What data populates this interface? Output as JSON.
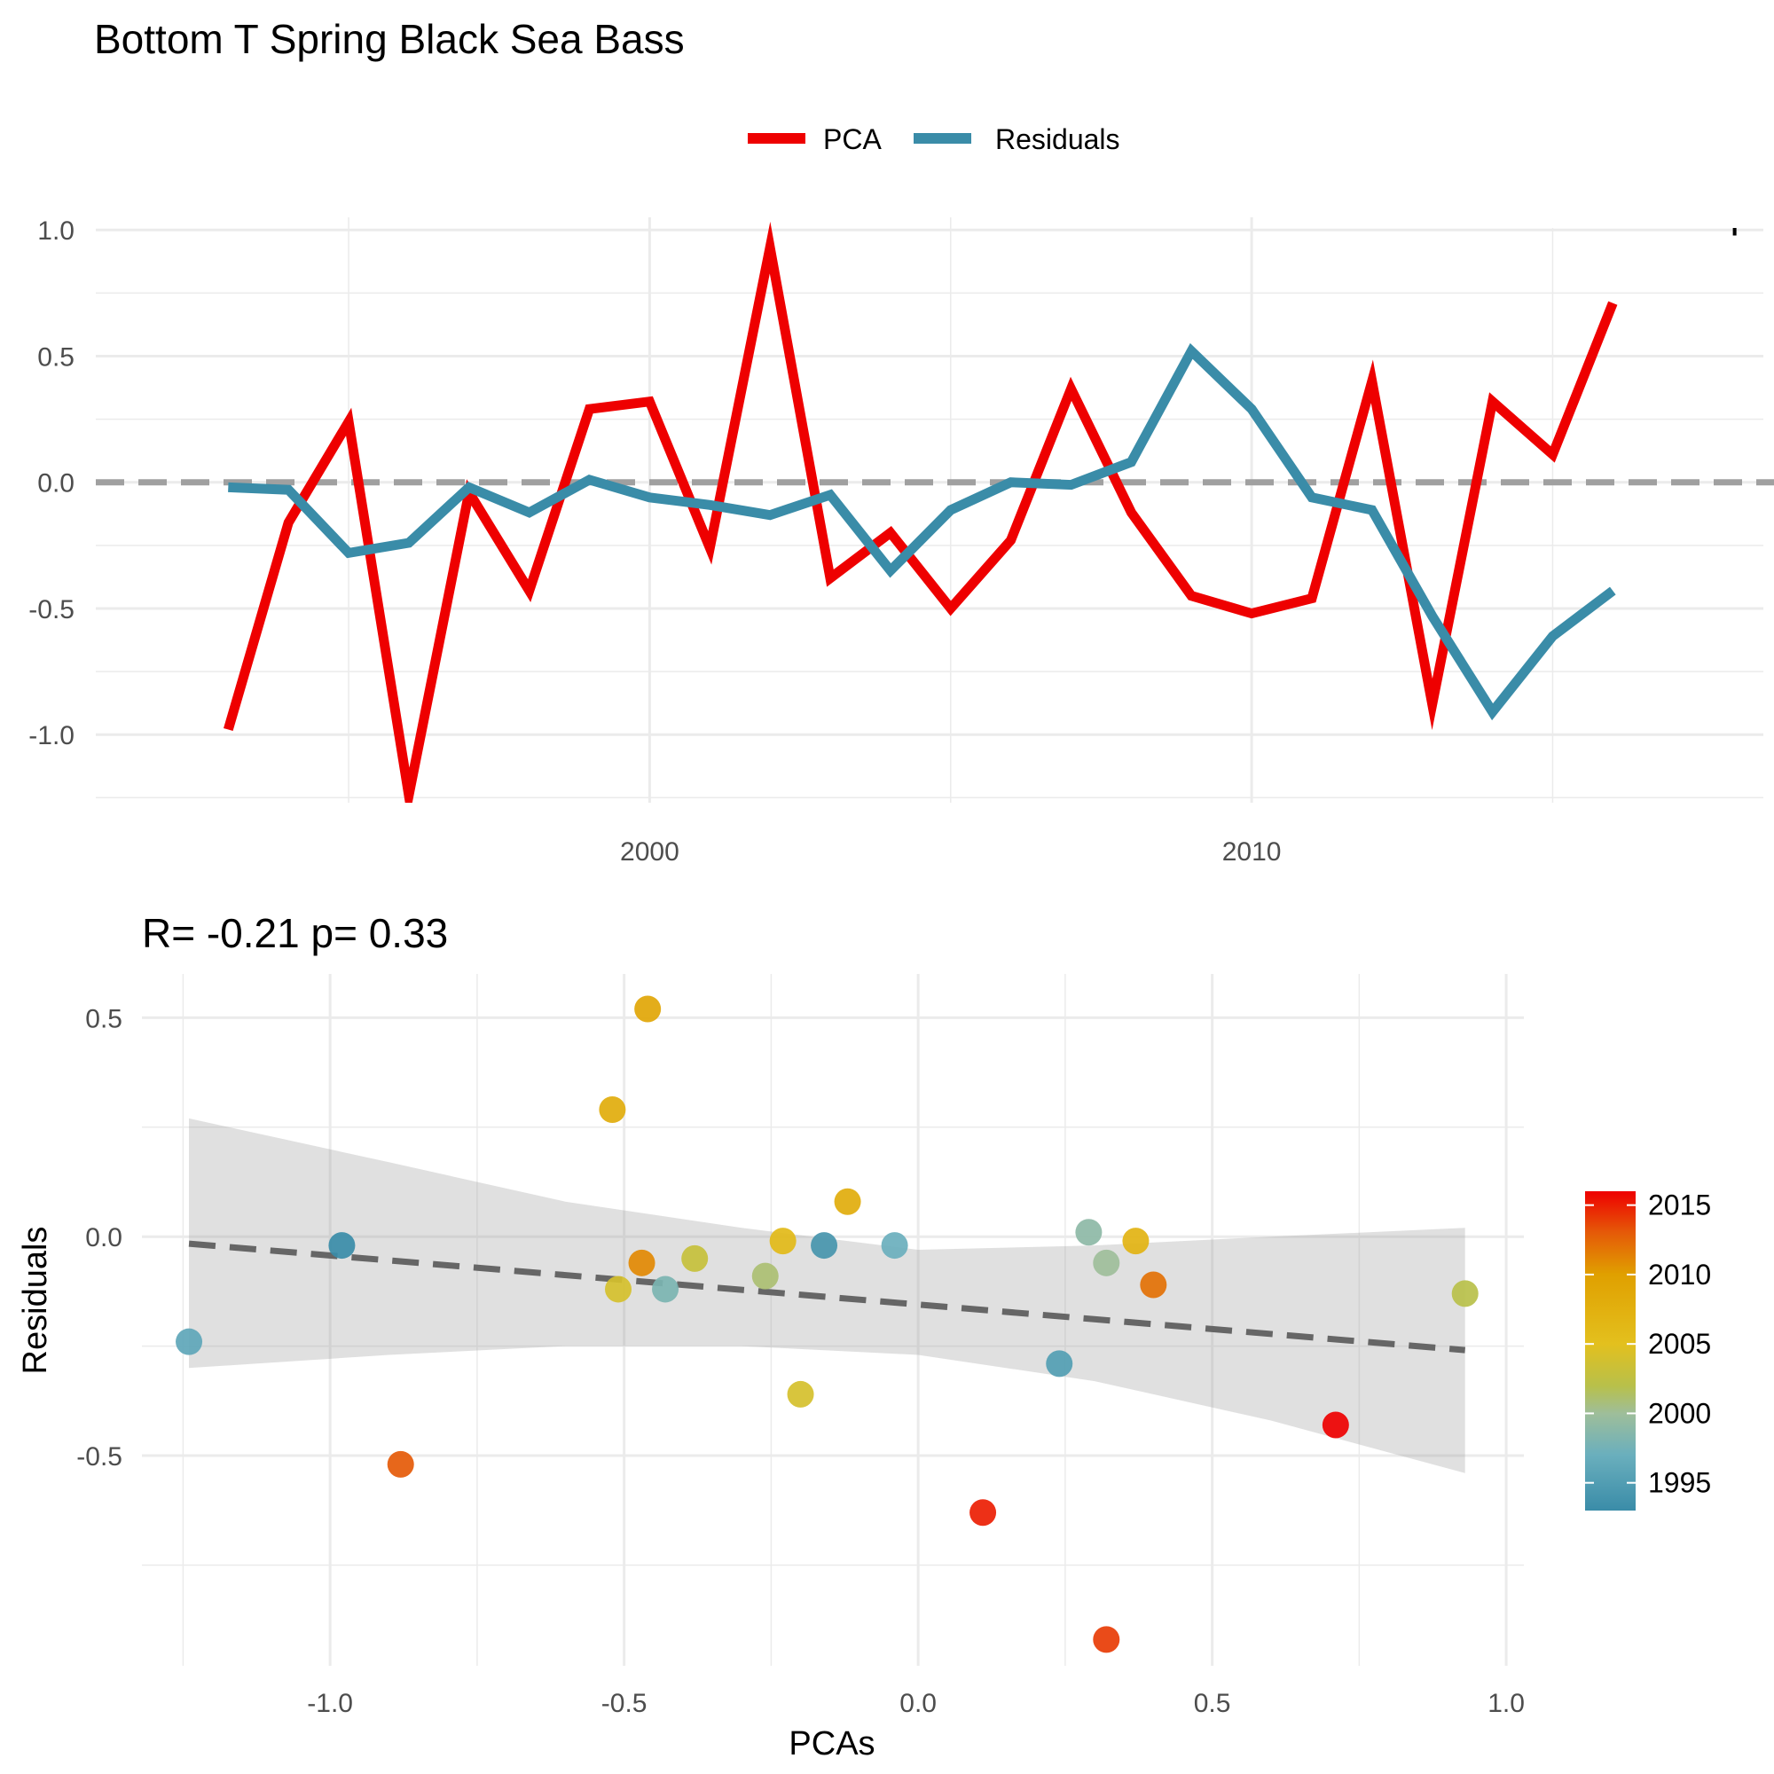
{
  "title": "Bottom T Spring Black Sea Bass",
  "chart_data": [
    {
      "type": "line",
      "legend": {
        "position": "top",
        "entries": [
          "PCA",
          "Residuals"
        ]
      },
      "series_colors": {
        "PCA": "#ee0000",
        "Residuals": "#3a8ca8"
      },
      "x": [
        1993,
        1994,
        1995,
        1996,
        1997,
        1998,
        1999,
        2000,
        2001,
        2002,
        2003,
        2004,
        2005,
        2006,
        2007,
        2008,
        2009,
        2010,
        2011,
        2012,
        2013,
        2014,
        2015,
        2016
      ],
      "series": [
        {
          "name": "PCA",
          "values": [
            -0.98,
            -0.16,
            0.24,
            -1.24,
            -0.04,
            -0.43,
            0.29,
            0.32,
            -0.26,
            0.93,
            -0.38,
            -0.2,
            -0.5,
            -0.23,
            0.37,
            -0.12,
            -0.45,
            -0.52,
            -0.46,
            0.4,
            -0.88,
            0.32,
            0.11,
            0.71
          ]
        },
        {
          "name": "Residuals",
          "values": [
            -0.02,
            -0.03,
            -0.28,
            -0.24,
            -0.02,
            -0.12,
            0.01,
            -0.06,
            -0.09,
            -0.13,
            -0.05,
            -0.35,
            -0.11,
            0.0,
            -0.01,
            0.08,
            0.52,
            0.29,
            -0.06,
            -0.11,
            -0.53,
            -0.91,
            -0.61,
            -0.43
          ]
        }
      ],
      "reference_line_y": 0,
      "xlim": [
        1990.8,
        2018.5
      ],
      "ylim": [
        -1.27,
        1.05
      ],
      "x_ticks": [
        2000,
        2010
      ],
      "x_tick_labels": [
        "2000",
        "2010"
      ],
      "y_ticks": [
        1.0,
        0.5,
        0.0,
        -0.5,
        -1.0
      ],
      "y_tick_labels": [
        "1.0",
        "0.5",
        "0.0",
        "-0.5",
        "-1.0"
      ],
      "annotation_partial": "R= -0.21  p= 0.33",
      "grid": true
    },
    {
      "type": "scatter",
      "subtitle": "R= -0.21  p= 0.33",
      "xlabel": "PCAs",
      "ylabel": "Residuals",
      "xlim": [
        -1.32,
        1.03
      ],
      "ylim": [
        -0.98,
        0.6
      ],
      "x_ticks": [
        -1.0,
        -0.5,
        0.0,
        0.5,
        1.0
      ],
      "x_tick_labels": [
        "-1.0",
        "-0.5",
        "0.0",
        "0.5",
        "1.0"
      ],
      "y_ticks": [
        0.5,
        0.0,
        -0.5
      ],
      "y_tick_labels": [
        "0.5",
        "0.0",
        "-0.5"
      ],
      "points": [
        {
          "x": -1.24,
          "y": -0.24,
          "year": 1996
        },
        {
          "x": -0.98,
          "y": -0.02,
          "year": 1993
        },
        {
          "x": -0.88,
          "y": -0.52,
          "year": 2013
        },
        {
          "x": -0.52,
          "y": 0.29,
          "year": 2008
        },
        {
          "x": -0.46,
          "y": 0.52,
          "year": 2009
        },
        {
          "x": -0.47,
          "y": -0.06,
          "year": 2011
        },
        {
          "x": -0.51,
          "y": -0.12,
          "year": 2004
        },
        {
          "x": -0.43,
          "y": -0.12,
          "year": 1998
        },
        {
          "x": -0.38,
          "y": -0.05,
          "year": 2003
        },
        {
          "x": -0.26,
          "y": -0.09,
          "year": 2001
        },
        {
          "x": -0.23,
          "y": -0.01,
          "year": 2006
        },
        {
          "x": -0.2,
          "y": -0.36,
          "year": 2004
        },
        {
          "x": -0.16,
          "y": -0.02,
          "year": 1994
        },
        {
          "x": -0.12,
          "y": 0.08,
          "year": 2008
        },
        {
          "x": -0.04,
          "y": -0.02,
          "year": 1997
        },
        {
          "x": 0.11,
          "y": -0.63,
          "year": 2015
        },
        {
          "x": 0.24,
          "y": -0.29,
          "year": 1995
        },
        {
          "x": 0.29,
          "y": 0.01,
          "year": 1999
        },
        {
          "x": 0.32,
          "y": -0.06,
          "year": 2000
        },
        {
          "x": 0.32,
          "y": -0.92,
          "year": 2014
        },
        {
          "x": 0.37,
          "y": -0.01,
          "year": 2007
        },
        {
          "x": 0.4,
          "y": -0.11,
          "year": 2012
        },
        {
          "x": 0.71,
          "y": -0.43,
          "year": 2016
        },
        {
          "x": 0.93,
          "y": -0.13,
          "year": 2002
        }
      ],
      "trend": {
        "x0": -1.24,
        "x1": 0.93,
        "slope": -0.112,
        "intercept": -0.155,
        "style": "dashed",
        "color": "#666666"
      },
      "confidence_band": {
        "x": [
          -1.24,
          -0.9,
          -0.6,
          -0.3,
          0.0,
          0.3,
          0.6,
          0.93
        ],
        "upper": [
          0.27,
          0.17,
          0.08,
          0.02,
          -0.03,
          -0.02,
          0.0,
          0.02
        ],
        "lower": [
          -0.3,
          -0.27,
          -0.25,
          -0.25,
          -0.27,
          -0.33,
          -0.42,
          -0.54
        ]
      },
      "colorbar": {
        "label_ticks": [
          2015,
          2010,
          2005,
          2000,
          1995
        ],
        "label_texts": [
          "2015",
          "2010",
          "2005",
          "2000",
          "1995"
        ],
        "range": [
          1993,
          2016
        ],
        "stops": [
          {
            "year": 1993,
            "color": "#3a8ca8"
          },
          {
            "year": 1997,
            "color": "#6aafbd"
          },
          {
            "year": 2000,
            "color": "#9ebe9a"
          },
          {
            "year": 2002,
            "color": "#b8c04a"
          },
          {
            "year": 2005,
            "color": "#e3c01e"
          },
          {
            "year": 2010,
            "color": "#e0a000"
          },
          {
            "year": 2013,
            "color": "#e55a08"
          },
          {
            "year": 2016,
            "color": "#ee0000"
          }
        ]
      },
      "grid": true
    }
  ]
}
